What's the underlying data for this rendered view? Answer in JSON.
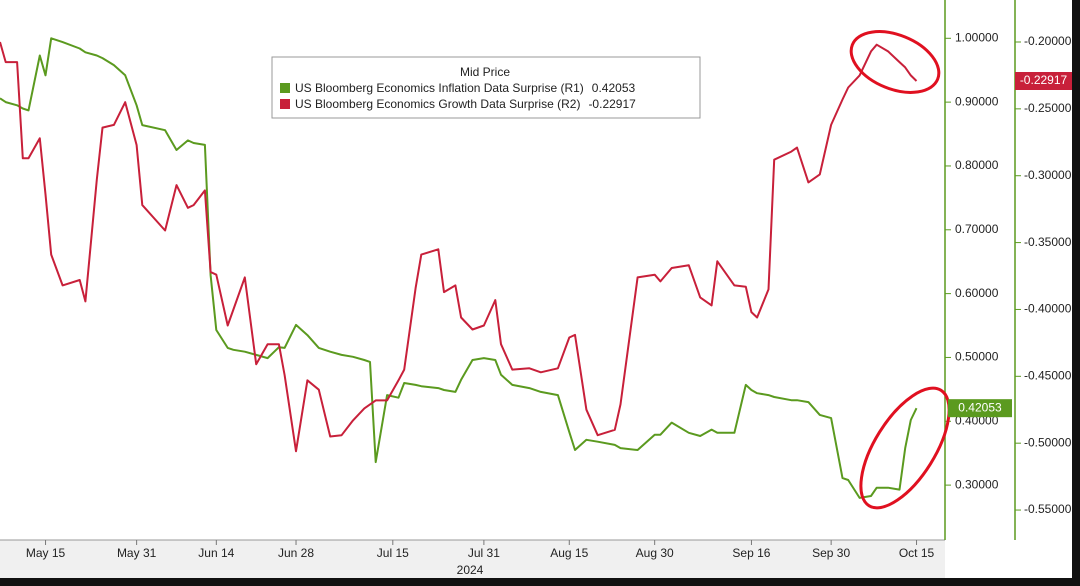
{
  "chart_data": {
    "type": "line",
    "legend_title": "Mid Price",
    "xlabel": "2024",
    "x": [
      "2024-05-07",
      "2024-05-08",
      "2024-05-10",
      "2024-05-11",
      "2024-05-12",
      "2024-05-14",
      "2024-05-15",
      "2024-05-16",
      "2024-05-18",
      "2024-05-21",
      "2024-05-22",
      "2024-05-24",
      "2024-05-25",
      "2024-05-27",
      "2024-05-29",
      "2024-05-31",
      "2024-06-01",
      "2024-06-05",
      "2024-06-07",
      "2024-06-09",
      "2024-06-10",
      "2024-06-12",
      "2024-06-13",
      "2024-06-14",
      "2024-06-16",
      "2024-06-17",
      "2024-06-19",
      "2024-06-21",
      "2024-06-23",
      "2024-06-25",
      "2024-06-26",
      "2024-06-28",
      "2024-06-30",
      "2024-07-02",
      "2024-07-04",
      "2024-07-06",
      "2024-07-08",
      "2024-07-10",
      "2024-07-11",
      "2024-07-12",
      "2024-07-14",
      "2024-07-16",
      "2024-07-17",
      "2024-07-19",
      "2024-07-20",
      "2024-07-23",
      "2024-07-24",
      "2024-07-26",
      "2024-07-27",
      "2024-07-29",
      "2024-07-31",
      "2024-08-02",
      "2024-08-03",
      "2024-08-05",
      "2024-08-08",
      "2024-08-10",
      "2024-08-13",
      "2024-08-15",
      "2024-08-16",
      "2024-08-18",
      "2024-08-20",
      "2024-08-23",
      "2024-08-24",
      "2024-08-27",
      "2024-08-30",
      "2024-08-31",
      "2024-09-02",
      "2024-09-05",
      "2024-09-07",
      "2024-09-09",
      "2024-09-10",
      "2024-09-13",
      "2024-09-15",
      "2024-09-16",
      "2024-09-17",
      "2024-09-19",
      "2024-09-20",
      "2024-09-23",
      "2024-09-24",
      "2024-09-26",
      "2024-09-28",
      "2024-09-30",
      "2024-10-02",
      "2024-10-03",
      "2024-10-05",
      "2024-10-07",
      "2024-10-08",
      "2024-10-10",
      "2024-10-12",
      "2024-10-13",
      "2024-10-14",
      "2024-10-15"
    ],
    "series": [
      {
        "name": "US Bloomberg Economics Inflation Data Surprise (R1)",
        "color": "#5b9a1f",
        "axis": "y",
        "values": [
          0.906,
          0.9,
          0.895,
          0.89,
          0.887,
          0.973,
          0.942,
          1.0,
          0.994,
          0.984,
          0.978,
          0.973,
          0.969,
          0.958,
          0.942,
          0.895,
          0.864,
          0.856,
          0.825,
          0.84,
          0.836,
          0.833,
          0.629,
          0.543,
          0.515,
          0.512,
          0.509,
          0.504,
          0.499,
          0.516,
          0.515,
          0.551,
          0.535,
          0.515,
          0.509,
          0.504,
          0.501,
          0.496,
          0.493,
          0.336,
          0.441,
          0.437,
          0.46,
          0.457,
          0.455,
          0.452,
          0.449,
          0.446,
          0.465,
          0.496,
          0.499,
          0.496,
          0.473,
          0.457,
          0.452,
          0.446,
          0.441,
          0.383,
          0.355,
          0.371,
          0.368,
          0.363,
          0.358,
          0.355,
          0.379,
          0.379,
          0.398,
          0.382,
          0.377,
          0.387,
          0.382,
          0.382,
          0.457,
          0.449,
          0.444,
          0.441,
          0.438,
          0.433,
          0.433,
          0.43,
          0.41,
          0.405,
          0.311,
          0.308,
          0.28,
          0.283,
          0.296,
          0.296,
          0.293,
          0.358,
          0.402,
          0.42053
        ]
      },
      {
        "name": "US Bloomberg Economics Growth Data Surprise (R2)",
        "color": "#c8203a",
        "axis": "y2",
        "values": [
          -0.2,
          -0.215,
          -0.215,
          -0.287,
          -0.287,
          -0.272,
          -0.314,
          -0.359,
          -0.382,
          -0.378,
          -0.394,
          -0.303,
          -0.264,
          -0.262,
          -0.245,
          -0.277,
          -0.322,
          -0.341,
          -0.307,
          -0.324,
          -0.322,
          -0.311,
          -0.372,
          -0.374,
          -0.412,
          -0.4,
          -0.376,
          -0.441,
          -0.426,
          -0.426,
          -0.449,
          -0.506,
          -0.453,
          -0.46,
          -0.495,
          -0.494,
          -0.483,
          -0.474,
          -0.471,
          -0.468,
          -0.468,
          -0.453,
          -0.445,
          -0.384,
          -0.359,
          -0.355,
          -0.387,
          -0.382,
          -0.406,
          -0.415,
          -0.412,
          -0.393,
          -0.426,
          -0.445,
          -0.444,
          -0.447,
          -0.444,
          -0.421,
          -0.419,
          -0.475,
          -0.494,
          -0.49,
          -0.471,
          -0.376,
          -0.374,
          -0.379,
          -0.369,
          -0.367,
          -0.391,
          -0.397,
          -0.364,
          -0.382,
          -0.383,
          -0.402,
          -0.406,
          -0.385,
          -0.288,
          -0.282,
          -0.279,
          -0.305,
          -0.299,
          -0.262,
          -0.243,
          -0.234,
          -0.225,
          -0.207,
          -0.202,
          -0.207,
          -0.215,
          -0.219,
          -0.225,
          -0.22917
        ]
      }
    ],
    "xlim": [
      "2024-05-07",
      "2024-10-20"
    ],
    "xticks": [
      {
        "value": "2024-05-15",
        "label": "May 15"
      },
      {
        "value": "2024-05-31",
        "label": "May 31"
      },
      {
        "value": "2024-06-14",
        "label": "Jun 14"
      },
      {
        "value": "2024-06-28",
        "label": "Jun 28"
      },
      {
        "value": "2024-07-15",
        "label": "Jul 15"
      },
      {
        "value": "2024-07-31",
        "label": "Jul 31"
      },
      {
        "value": "2024-08-15",
        "label": "Aug 15"
      },
      {
        "value": "2024-08-30",
        "label": "Aug 30"
      },
      {
        "value": "2024-09-16",
        "label": "Sep 16"
      },
      {
        "value": "2024-09-30",
        "label": "Sep 30"
      },
      {
        "value": "2024-10-15",
        "label": "Oct 15"
      }
    ],
    "ylim": [
      0.214,
      1.06
    ],
    "yticks": [
      {
        "value": 0.3,
        "label": "0.30000"
      },
      {
        "value": 0.4,
        "label": "0.40000"
      },
      {
        "value": 0.5,
        "label": "0.50000"
      },
      {
        "value": 0.6,
        "label": "0.60000"
      },
      {
        "value": 0.7,
        "label": "0.70000"
      },
      {
        "value": 0.8,
        "label": "0.80000"
      },
      {
        "value": 0.9,
        "label": "0.90000"
      },
      {
        "value": 1,
        "label": "1.00000"
      }
    ],
    "y2lim": [
      -0.5724,
      -0.1686
    ],
    "y2ticks": [
      {
        "value": -0.55,
        "label": "-0.55000"
      },
      {
        "value": -0.5,
        "label": "-0.50000"
      },
      {
        "value": -0.45,
        "label": "-0.45000"
      },
      {
        "value": -0.4,
        "label": "-0.40000"
      },
      {
        "value": -0.35,
        "label": "-0.35000"
      },
      {
        "value": -0.3,
        "label": "-0.30000"
      },
      {
        "value": -0.25,
        "label": "-0.25000"
      },
      {
        "value": -0.2,
        "label": "-0.20000"
      }
    ],
    "grid": false
  }
}
